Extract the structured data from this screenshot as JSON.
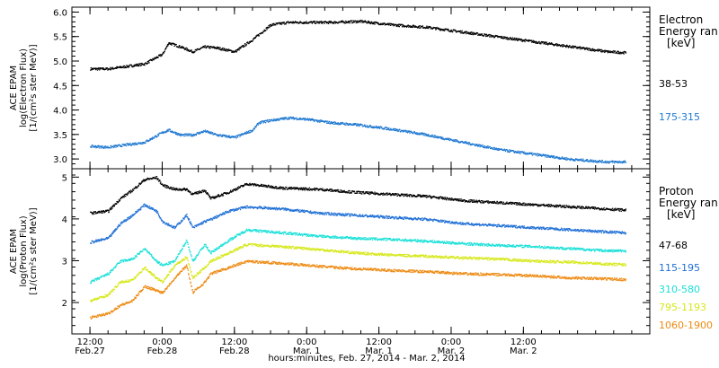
{
  "chart_data": [
    {
      "type": "scatter",
      "panel": "electrons",
      "ylabel_lines": [
        "ACE EPAM",
        "log(Electron Flux)",
        "[1/(cm²s ster MeV)]"
      ],
      "ylim": [
        2.8,
        6.1
      ],
      "yticks": [
        "3.0",
        "3.5",
        "4.0",
        "4.5",
        "5.0",
        "5.5",
        "6.0"
      ],
      "legend_title": [
        "Electron",
        "Energy ran",
        "[keV]"
      ],
      "series": [
        {
          "name": "38-53",
          "color": "#000000",
          "x": [
            0,
            3,
            6,
            9,
            12,
            13,
            15,
            17,
            19,
            21,
            24,
            27,
            28,
            30,
            33,
            36,
            40,
            45,
            50,
            56,
            62,
            68,
            74,
            80,
            86,
            89
          ],
          "y": [
            4.85,
            4.85,
            4.9,
            4.95,
            5.15,
            5.38,
            5.3,
            5.2,
            5.3,
            5.28,
            5.2,
            5.45,
            5.55,
            5.75,
            5.8,
            5.8,
            5.8,
            5.82,
            5.75,
            5.7,
            5.6,
            5.5,
            5.4,
            5.3,
            5.2,
            5.18
          ]
        },
        {
          "name": "175-315",
          "color": "#1f78d1",
          "x": [
            0,
            3,
            6,
            9,
            12,
            13,
            15,
            17,
            19,
            21,
            24,
            27,
            28,
            30,
            33,
            36,
            40,
            45,
            50,
            56,
            62,
            68,
            74,
            80,
            86,
            89
          ],
          "y": [
            3.27,
            3.25,
            3.3,
            3.35,
            3.55,
            3.6,
            3.5,
            3.5,
            3.58,
            3.5,
            3.45,
            3.6,
            3.75,
            3.8,
            3.85,
            3.82,
            3.75,
            3.7,
            3.62,
            3.5,
            3.35,
            3.2,
            3.1,
            3.0,
            2.95,
            2.95
          ]
        }
      ]
    },
    {
      "type": "scatter",
      "panel": "protons",
      "ylabel_lines": [
        "ACE EPAM",
        "log(Proton Flux)",
        "[1/(cm²s ster MeV)]"
      ],
      "ylim": [
        1.25,
        5.2
      ],
      "yticks": [
        "2",
        "3",
        "4",
        "5"
      ],
      "legend_title": [
        "Proton",
        "Energy ran",
        "[keV]"
      ],
      "xlabel": "hours:minutes, Feb. 27, 2014 - Mar. 2, 2014",
      "xlim": [
        -3,
        93
      ],
      "xticks": [
        {
          "x": 0,
          "time": "12:00",
          "date": "Feb.27"
        },
        {
          "x": 12,
          "time": "0:00",
          "date": "Feb.28"
        },
        {
          "x": 24,
          "time": "12:00",
          "date": "Feb.28"
        },
        {
          "x": 36,
          "time": "0:00",
          "date": "Mar. 1"
        },
        {
          "x": 48,
          "time": "12:00",
          "date": "Mar. 1"
        },
        {
          "x": 60,
          "time": "0:00",
          "date": "Mar. 2"
        },
        {
          "x": 72,
          "time": "12:00",
          "date": "Mar. 2"
        }
      ],
      "series": [
        {
          "name": "47-68",
          "color": "#000000",
          "x": [
            0,
            3,
            5,
            7,
            9,
            11,
            12,
            14,
            16,
            17,
            19,
            20,
            23,
            26,
            32,
            38,
            44,
            50,
            56,
            62,
            68,
            74,
            80,
            86,
            89
          ],
          "y": [
            4.15,
            4.2,
            4.5,
            4.7,
            4.95,
            5.0,
            4.82,
            4.72,
            4.72,
            4.6,
            4.7,
            4.5,
            4.65,
            4.85,
            4.75,
            4.72,
            4.65,
            4.6,
            4.55,
            4.45,
            4.4,
            4.35,
            4.3,
            4.25,
            4.22
          ]
        },
        {
          "name": "115-195",
          "color": "#1f6fd6",
          "x": [
            0,
            3,
            5,
            7,
            9,
            11,
            12,
            14,
            16,
            17,
            19,
            20,
            23,
            26,
            32,
            38,
            44,
            50,
            56,
            62,
            68,
            74,
            80,
            86,
            89
          ],
          "y": [
            3.45,
            3.55,
            3.9,
            4.1,
            4.35,
            4.2,
            3.95,
            3.8,
            4.1,
            3.8,
            3.95,
            4.0,
            4.2,
            4.3,
            4.25,
            4.15,
            4.1,
            4.05,
            4.0,
            3.9,
            3.85,
            3.8,
            3.75,
            3.7,
            3.68
          ]
        },
        {
          "name": "310-580",
          "color": "#19e0d8",
          "x": [
            0,
            3,
            5,
            7,
            9,
            11,
            12,
            14,
            16,
            17,
            19,
            20,
            23,
            26,
            32,
            38,
            44,
            50,
            56,
            62,
            68,
            74,
            80,
            86,
            89
          ],
          "y": [
            2.5,
            2.7,
            3.0,
            3.05,
            3.3,
            3.0,
            2.9,
            3.0,
            3.5,
            3.0,
            3.4,
            3.2,
            3.5,
            3.75,
            3.68,
            3.6,
            3.55,
            3.52,
            3.48,
            3.42,
            3.38,
            3.35,
            3.3,
            3.25,
            3.25
          ]
        },
        {
          "name": "795-1193",
          "color": "#d6e81a",
          "x": [
            0,
            3,
            5,
            7,
            9,
            11,
            12,
            14,
            16,
            17,
            19,
            20,
            23,
            26,
            32,
            38,
            44,
            50,
            56,
            62,
            68,
            74,
            80,
            86,
            89
          ],
          "y": [
            2.05,
            2.2,
            2.5,
            2.55,
            2.85,
            2.6,
            2.5,
            2.9,
            3.1,
            2.6,
            2.85,
            3.0,
            3.2,
            3.4,
            3.35,
            3.28,
            3.2,
            3.15,
            3.12,
            3.08,
            3.05,
            3.0,
            2.98,
            2.93,
            2.92
          ]
        },
        {
          "name": "1060-1900",
          "color": "#ee8a12",
          "x": [
            0,
            3,
            5,
            7,
            9,
            11,
            12,
            14,
            16,
            17,
            19,
            20,
            23,
            26,
            32,
            38,
            44,
            50,
            56,
            62,
            68,
            74,
            80,
            86,
            89
          ],
          "y": [
            1.65,
            1.75,
            1.95,
            2.05,
            2.4,
            2.3,
            2.25,
            2.6,
            2.9,
            2.25,
            2.5,
            2.7,
            2.85,
            3.0,
            2.95,
            2.88,
            2.82,
            2.78,
            2.75,
            2.7,
            2.68,
            2.65,
            2.6,
            2.58,
            2.56
          ]
        }
      ]
    }
  ]
}
